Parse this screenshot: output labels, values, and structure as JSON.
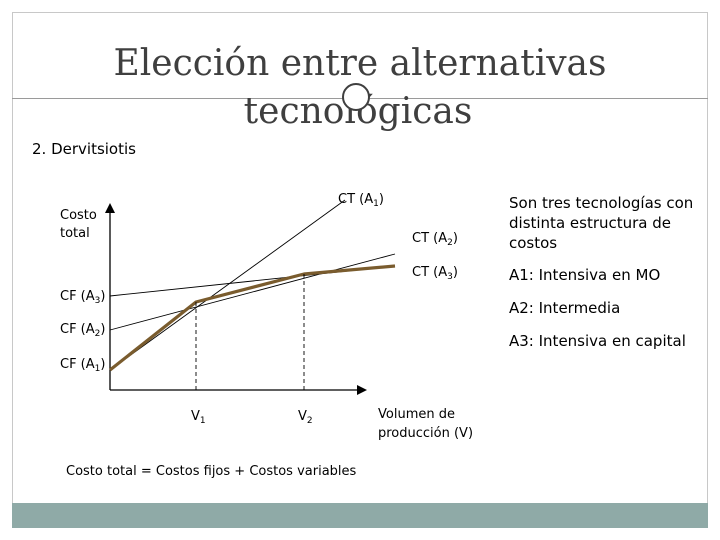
{
  "slide": {
    "title_line1": "Elección entre alternativas",
    "title_line2": "tecnológicas",
    "subtitle": "2. Dervitsiotis",
    "footer_color": "#8faaa7",
    "accent_color": "#7a5c2e"
  },
  "notes": {
    "description": "Son tres tecnologías con distinta estructura de costos",
    "a1": "A1: Intensiva en MO",
    "a2": "A2: Intermedia",
    "a3": "A3: Intensiva en capital"
  },
  "diagram": {
    "y_label_line1": "Costo",
    "y_label_line2": "total",
    "x_label_line1": "Volumen de",
    "x_label_line2": "producción (V)",
    "formula": "Costo total = Costos fijos + Costos variables",
    "lines": [
      {
        "name": "CT (A1)",
        "prefix": "CT (A",
        "sub": "1",
        "suffix": ")"
      },
      {
        "name": "CT (A2)",
        "prefix": "CT (A",
        "sub": "2",
        "suffix": ")"
      },
      {
        "name": "CT (A3)",
        "prefix": "CT (A",
        "sub": "3",
        "suffix": ")"
      }
    ],
    "fixed_costs": [
      {
        "prefix": "CF (A",
        "sub": "1",
        "suffix": ")"
      },
      {
        "prefix": "CF (A",
        "sub": "2",
        "suffix": ")"
      },
      {
        "prefix": "CF (A",
        "sub": "3",
        "suffix": ")"
      }
    ],
    "breakpoints": [
      {
        "prefix": "V",
        "sub": "1"
      },
      {
        "prefix": "V",
        "sub": "2"
      }
    ]
  }
}
